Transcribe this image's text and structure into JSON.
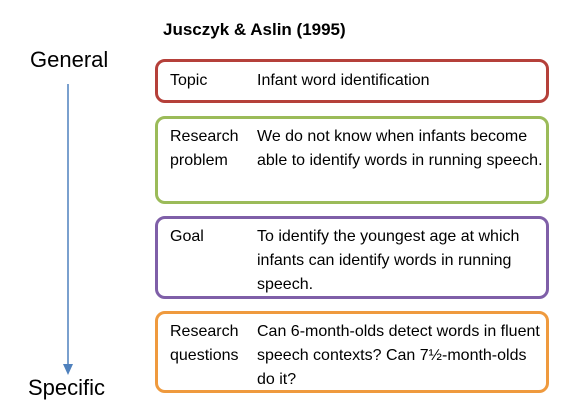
{
  "title": "Jusczyk & Aslin (1995)",
  "axis": {
    "top_label": "General",
    "bottom_label": "Specific",
    "arrow_color": "#4f81bd"
  },
  "boxes": [
    {
      "label": "Topic",
      "text": "Infant word identification",
      "border_color": "#b5403a"
    },
    {
      "label": "Research\nproblem",
      "text": "We do not know when infants become able to identify words in running speech.",
      "border_color": "#9bbb59"
    },
    {
      "label": "Goal",
      "text": "To identify the youngest age at which infants can identify words in running speech.",
      "border_color": "#7f5fa8"
    },
    {
      "label": "Research\nquestions",
      "text": "Can 6-month-olds detect words in fluent speech contexts? Can 7½-month-olds do it?",
      "border_color": "#ef9a3e"
    }
  ]
}
